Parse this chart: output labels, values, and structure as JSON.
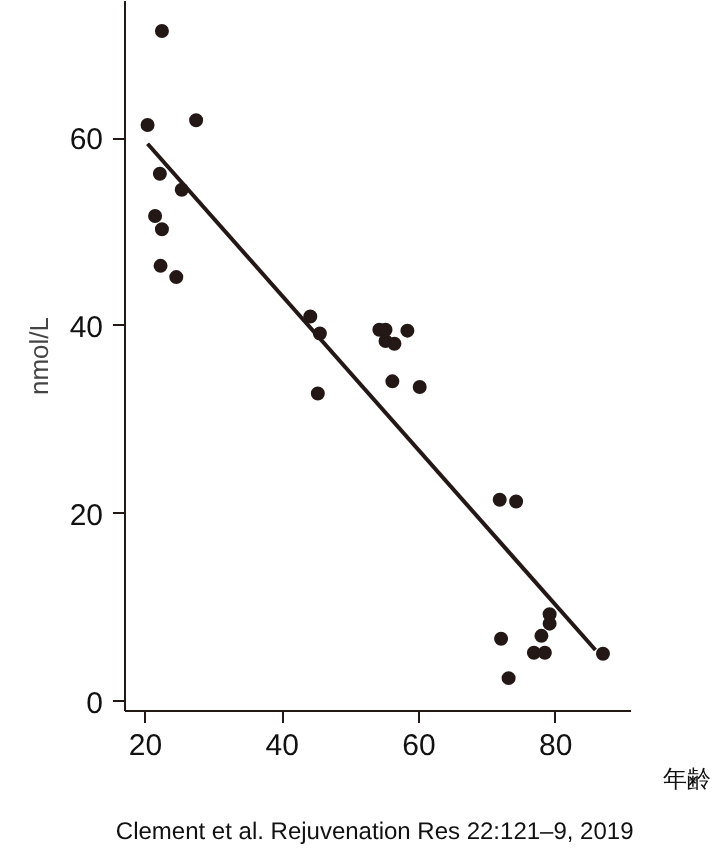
{
  "chart_data": {
    "type": "scatter",
    "xlabel": "年齢",
    "ylabel": "nmol/L",
    "annotations": [
      "Clement et al. Rejuvenation Res  22:121–9, 2019"
    ],
    "xlim": [
      17,
      91
    ],
    "ylim": [
      -1,
      74.6
    ],
    "xticks": [
      20,
      40,
      60,
      80
    ],
    "yticks": [
      0,
      20,
      40,
      60
    ],
    "grid": false,
    "marker": "circle",
    "series": [
      {
        "color": "#231815",
        "x": [
          20.3,
          22.4,
          27.4,
          22.1,
          25.3,
          21.4,
          22.4,
          22.2,
          24.5,
          44.1,
          45.5,
          45.2,
          54.2,
          55.1,
          55.1,
          56.4,
          58.3,
          56.1,
          60.1,
          71.8,
          74.2,
          72.0,
          73.1,
          79.1,
          79.1,
          77.9,
          76.8,
          78.4,
          86.9
        ],
        "values": [
          61.4,
          71.4,
          61.9,
          56.2,
          54.5,
          51.7,
          50.3,
          46.4,
          45.2,
          41.0,
          39.2,
          32.8,
          39.6,
          39.6,
          38.4,
          38.1,
          39.5,
          34.1,
          33.5,
          21.5,
          21.3,
          6.7,
          2.5,
          9.3,
          8.3,
          7.0,
          5.2,
          5.2,
          5.1
        ]
      },
      {
        "type": "line",
        "color": "#231815",
        "marker": "none",
        "x": [
          20.3,
          85.8
        ],
        "values": [
          59.4,
          5.5
        ]
      }
    ]
  }
}
